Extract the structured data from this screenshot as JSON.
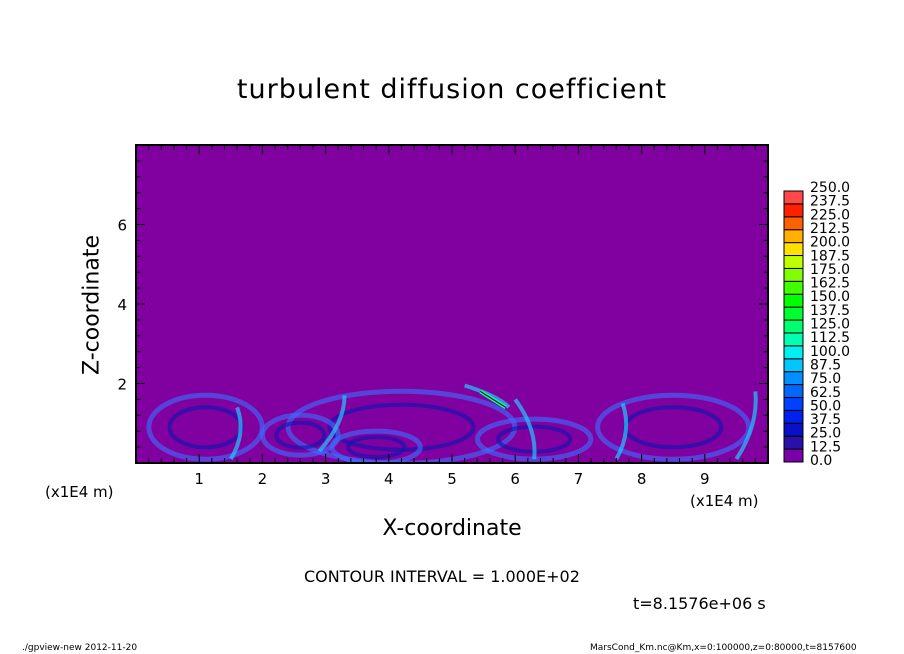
{
  "chart_data": {
    "type": "heatmap",
    "title": "turbulent diffusion coefficient",
    "xlabel": "X-coordinate",
    "ylabel": "Z-coordinate",
    "x_unit": "(x1E4 m)",
    "x_unit_right": "(x1E4 m)",
    "xlim": [
      0,
      10
    ],
    "ylim": [
      0,
      8
    ],
    "xticks": [
      "1",
      "2",
      "3",
      "4",
      "5",
      "6",
      "7",
      "8",
      "9"
    ],
    "yticks": [
      "2",
      "4",
      "6"
    ],
    "colorbar": {
      "levels": [
        "0.0",
        "12.5",
        "25.0",
        "37.5",
        "50.0",
        "62.5",
        "75.0",
        "87.5",
        "100.0",
        "112.5",
        "125.0",
        "137.5",
        "150.0",
        "162.5",
        "175.0",
        "187.5",
        "200.0",
        "212.5",
        "225.0",
        "237.5",
        "250.0"
      ],
      "colors": [
        "#7a00a8",
        "#2a10a8",
        "#0a10c8",
        "#0020f0",
        "#0040ff",
        "#0068ff",
        "#0090ff",
        "#00c8ff",
        "#00f0f0",
        "#00ffb0",
        "#00ff70",
        "#00ff30",
        "#00ff00",
        "#40ff00",
        "#80ff00",
        "#c0ff00",
        "#ffe000",
        "#ffb000",
        "#ff6000",
        "#ff2000",
        "#ff4848",
        "#ff8080"
      ]
    },
    "field_description_colors": {
      "background": "#8000a0",
      "turbulent_layer": "#0a20e0",
      "highlight": "#20c8ff"
    },
    "turbulent_layer_top_z": 2.0,
    "contour_interval": "CONTOUR INTERVAL = 1.000E+02",
    "time": "t=8.1576e+06 s"
  },
  "footer": {
    "left": "./gpview-new  2012-11-20",
    "right": "MarsCond_Km.nc@Km,x=0:100000,z=0:80000,t=8157600"
  }
}
